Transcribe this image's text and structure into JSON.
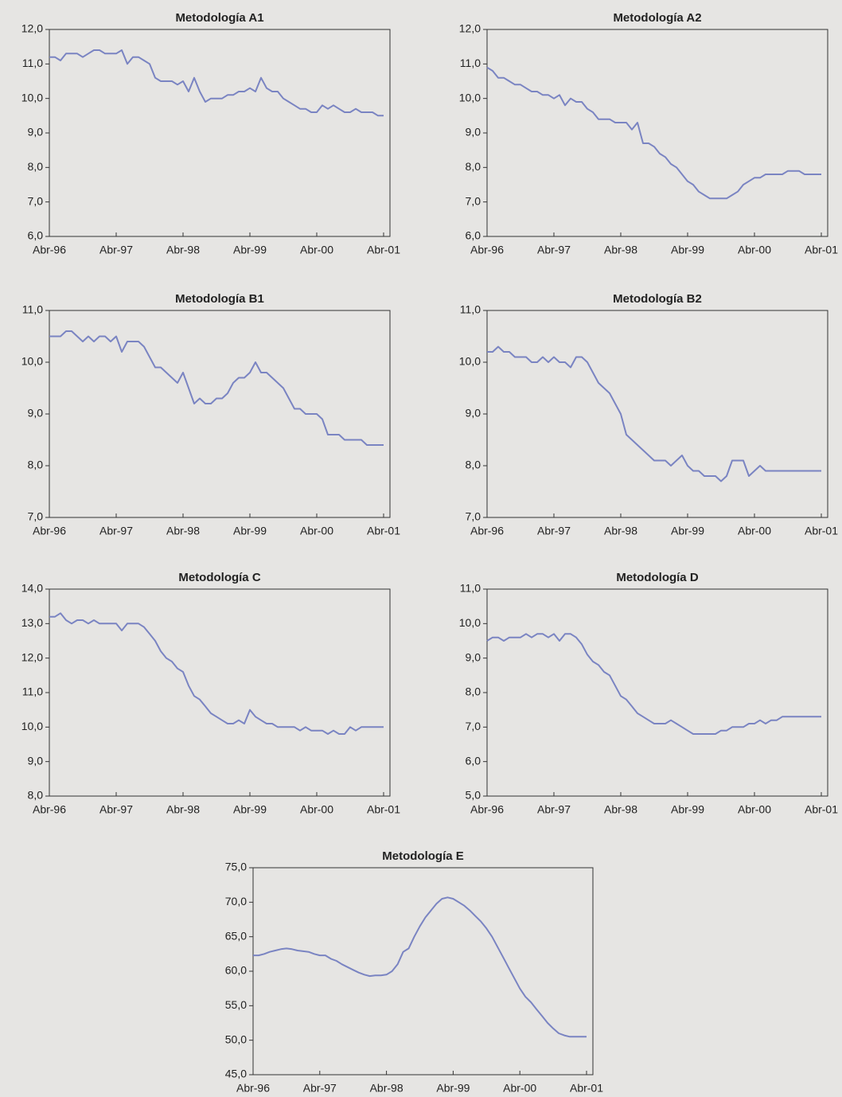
{
  "chart_data": [
    {
      "type": "line",
      "title": "Metodología A1",
      "color": "#7a84c2",
      "categories": [
        "Abr-96",
        null,
        null,
        null,
        null,
        null,
        null,
        null,
        null,
        null,
        null,
        null,
        "Abr-97",
        null,
        null,
        null,
        null,
        null,
        null,
        null,
        null,
        null,
        null,
        null,
        "Abr-98",
        null,
        null,
        null,
        null,
        null,
        null,
        null,
        null,
        null,
        null,
        null,
        "Abr-99",
        null,
        null,
        null,
        null,
        null,
        null,
        null,
        null,
        null,
        null,
        null,
        "Abr-00",
        null,
        null,
        null,
        null,
        null,
        null,
        null,
        null,
        null,
        null,
        null,
        "Abr-01"
      ],
      "values": [
        11.2,
        11.2,
        11.1,
        11.3,
        11.3,
        11.3,
        11.2,
        11.3,
        11.4,
        11.4,
        11.3,
        11.3,
        11.3,
        11.4,
        11.0,
        11.2,
        11.2,
        11.1,
        11.0,
        10.6,
        10.5,
        10.5,
        10.5,
        10.4,
        10.5,
        10.2,
        10.6,
        10.2,
        9.9,
        10.0,
        10.0,
        10.0,
        10.1,
        10.1,
        10.2,
        10.2,
        10.3,
        10.2,
        10.6,
        10.3,
        10.2,
        10.2,
        10.0,
        9.9,
        9.8,
        9.7,
        9.7,
        9.6,
        9.6,
        9.8,
        9.7,
        9.8,
        9.7,
        9.6,
        9.6,
        9.7,
        9.6,
        9.6,
        9.6,
        9.5,
        9.5
      ],
      "ylim": [
        6,
        12
      ],
      "yticks": [
        {
          "value": 6,
          "label": "6,0"
        },
        {
          "value": 7,
          "label": "7,0"
        },
        {
          "value": 8,
          "label": "8,0"
        },
        {
          "value": 9,
          "label": "9,0"
        },
        {
          "value": 10,
          "label": "10,0"
        },
        {
          "value": 11,
          "label": "11,0"
        },
        {
          "value": 12,
          "label": "12,0"
        }
      ]
    },
    {
      "type": "line",
      "title": "Metodología A2",
      "color": "#7a84c2",
      "categories": [
        "Abr-96",
        null,
        null,
        null,
        null,
        null,
        null,
        null,
        null,
        null,
        null,
        null,
        "Abr-97",
        null,
        null,
        null,
        null,
        null,
        null,
        null,
        null,
        null,
        null,
        null,
        "Abr-98",
        null,
        null,
        null,
        null,
        null,
        null,
        null,
        null,
        null,
        null,
        null,
        "Abr-99",
        null,
        null,
        null,
        null,
        null,
        null,
        null,
        null,
        null,
        null,
        null,
        "Abr-00",
        null,
        null,
        null,
        null,
        null,
        null,
        null,
        null,
        null,
        null,
        null,
        "Abr-01"
      ],
      "values": [
        10.9,
        10.8,
        10.6,
        10.6,
        10.5,
        10.4,
        10.4,
        10.3,
        10.2,
        10.2,
        10.1,
        10.1,
        10.0,
        10.1,
        9.8,
        10.0,
        9.9,
        9.9,
        9.7,
        9.6,
        9.4,
        9.4,
        9.4,
        9.3,
        9.3,
        9.3,
        9.1,
        9.3,
        8.7,
        8.7,
        8.6,
        8.4,
        8.3,
        8.1,
        8.0,
        7.8,
        7.6,
        7.5,
        7.3,
        7.2,
        7.1,
        7.1,
        7.1,
        7.1,
        7.2,
        7.3,
        7.5,
        7.6,
        7.7,
        7.7,
        7.8,
        7.8,
        7.8,
        7.8,
        7.9,
        7.9,
        7.9,
        7.8,
        7.8,
        7.8,
        7.8
      ],
      "ylim": [
        6,
        12
      ],
      "yticks": [
        {
          "value": 6,
          "label": "6,0"
        },
        {
          "value": 7,
          "label": "7,0"
        },
        {
          "value": 8,
          "label": "8,0"
        },
        {
          "value": 9,
          "label": "9,0"
        },
        {
          "value": 10,
          "label": "10,0"
        },
        {
          "value": 11,
          "label": "11,0"
        },
        {
          "value": 12,
          "label": "12,0"
        }
      ]
    },
    {
      "type": "line",
      "title": "Metodología B1",
      "color": "#7a84c2",
      "categories": [
        "Abr-96",
        null,
        null,
        null,
        null,
        null,
        null,
        null,
        null,
        null,
        null,
        null,
        "Abr-97",
        null,
        null,
        null,
        null,
        null,
        null,
        null,
        null,
        null,
        null,
        null,
        "Abr-98",
        null,
        null,
        null,
        null,
        null,
        null,
        null,
        null,
        null,
        null,
        null,
        "Abr-99",
        null,
        null,
        null,
        null,
        null,
        null,
        null,
        null,
        null,
        null,
        null,
        "Abr-00",
        null,
        null,
        null,
        null,
        null,
        null,
        null,
        null,
        null,
        null,
        null,
        "Abr-01"
      ],
      "values": [
        10.5,
        10.5,
        10.5,
        10.6,
        10.6,
        10.5,
        10.4,
        10.5,
        10.4,
        10.5,
        10.5,
        10.4,
        10.5,
        10.2,
        10.4,
        10.4,
        10.4,
        10.3,
        10.1,
        9.9,
        9.9,
        9.8,
        9.7,
        9.6,
        9.8,
        9.5,
        9.2,
        9.3,
        9.2,
        9.2,
        9.3,
        9.3,
        9.4,
        9.6,
        9.7,
        9.7,
        9.8,
        10.0,
        9.8,
        9.8,
        9.7,
        9.6,
        9.5,
        9.3,
        9.1,
        9.1,
        9.0,
        9.0,
        9.0,
        8.9,
        8.6,
        8.6,
        8.6,
        8.5,
        8.5,
        8.5,
        8.5,
        8.4,
        8.4,
        8.4,
        8.4
      ],
      "ylim": [
        7,
        11
      ],
      "yticks": [
        {
          "value": 7,
          "label": "7,0"
        },
        {
          "value": 8,
          "label": "8,0"
        },
        {
          "value": 9,
          "label": "9,0"
        },
        {
          "value": 10,
          "label": "10,0"
        },
        {
          "value": 11,
          "label": "11,0"
        }
      ]
    },
    {
      "type": "line",
      "title": "Metodología B2",
      "color": "#7a84c2",
      "categories": [
        "Abr-96",
        null,
        null,
        null,
        null,
        null,
        null,
        null,
        null,
        null,
        null,
        null,
        "Abr-97",
        null,
        null,
        null,
        null,
        null,
        null,
        null,
        null,
        null,
        null,
        null,
        "Abr-98",
        null,
        null,
        null,
        null,
        null,
        null,
        null,
        null,
        null,
        null,
        null,
        "Abr-99",
        null,
        null,
        null,
        null,
        null,
        null,
        null,
        null,
        null,
        null,
        null,
        "Abr-00",
        null,
        null,
        null,
        null,
        null,
        null,
        null,
        null,
        null,
        null,
        null,
        "Abr-01"
      ],
      "values": [
        10.2,
        10.2,
        10.3,
        10.2,
        10.2,
        10.1,
        10.1,
        10.1,
        10.0,
        10.0,
        10.1,
        10.0,
        10.1,
        10.0,
        10.0,
        9.9,
        10.1,
        10.1,
        10.0,
        9.8,
        9.6,
        9.5,
        9.4,
        9.2,
        9.0,
        8.6,
        8.5,
        8.4,
        8.3,
        8.2,
        8.1,
        8.1,
        8.1,
        8.0,
        8.1,
        8.2,
        8.0,
        7.9,
        7.9,
        7.8,
        7.8,
        7.8,
        7.7,
        7.8,
        8.1,
        8.1,
        8.1,
        7.8,
        7.9,
        8.0,
        7.9,
        7.9,
        7.9,
        7.9,
        7.9,
        7.9,
        7.9,
        7.9,
        7.9,
        7.9,
        7.9
      ],
      "ylim": [
        7,
        11
      ],
      "yticks": [
        {
          "value": 7,
          "label": "7,0"
        },
        {
          "value": 8,
          "label": "8,0"
        },
        {
          "value": 9,
          "label": "9,0"
        },
        {
          "value": 10,
          "label": "10,0"
        },
        {
          "value": 11,
          "label": "11,0"
        }
      ]
    },
    {
      "type": "line",
      "title": "Metodología C",
      "color": "#7a84c2",
      "categories": [
        "Abr-96",
        null,
        null,
        null,
        null,
        null,
        null,
        null,
        null,
        null,
        null,
        null,
        "Abr-97",
        null,
        null,
        null,
        null,
        null,
        null,
        null,
        null,
        null,
        null,
        null,
        "Abr-98",
        null,
        null,
        null,
        null,
        null,
        null,
        null,
        null,
        null,
        null,
        null,
        "Abr-99",
        null,
        null,
        null,
        null,
        null,
        null,
        null,
        null,
        null,
        null,
        null,
        "Abr-00",
        null,
        null,
        null,
        null,
        null,
        null,
        null,
        null,
        null,
        null,
        null,
        "Abr-01"
      ],
      "values": [
        13.2,
        13.2,
        13.3,
        13.1,
        13.0,
        13.1,
        13.1,
        13.0,
        13.1,
        13.0,
        13.0,
        13.0,
        13.0,
        12.8,
        13.0,
        13.0,
        13.0,
        12.9,
        12.7,
        12.5,
        12.2,
        12.0,
        11.9,
        11.7,
        11.6,
        11.2,
        10.9,
        10.8,
        10.6,
        10.4,
        10.3,
        10.2,
        10.1,
        10.1,
        10.2,
        10.1,
        10.5,
        10.3,
        10.2,
        10.1,
        10.1,
        10.0,
        10.0,
        10.0,
        10.0,
        9.9,
        10.0,
        9.9,
        9.9,
        9.9,
        9.8,
        9.9,
        9.8,
        9.8,
        10.0,
        9.9,
        10.0,
        10.0,
        10.0,
        10.0,
        10.0
      ],
      "ylim": [
        8,
        14
      ],
      "yticks": [
        {
          "value": 8,
          "label": "8,0"
        },
        {
          "value": 9,
          "label": "9,0"
        },
        {
          "value": 10,
          "label": "10,0"
        },
        {
          "value": 11,
          "label": "11,0"
        },
        {
          "value": 12,
          "label": "12,0"
        },
        {
          "value": 13,
          "label": "13,0"
        },
        {
          "value": 14,
          "label": "14,0"
        }
      ]
    },
    {
      "type": "line",
      "title": "Metodología D",
      "color": "#7a84c2",
      "categories": [
        "Abr-96",
        null,
        null,
        null,
        null,
        null,
        null,
        null,
        null,
        null,
        null,
        null,
        "Abr-97",
        null,
        null,
        null,
        null,
        null,
        null,
        null,
        null,
        null,
        null,
        null,
        "Abr-98",
        null,
        null,
        null,
        null,
        null,
        null,
        null,
        null,
        null,
        null,
        null,
        "Abr-99",
        null,
        null,
        null,
        null,
        null,
        null,
        null,
        null,
        null,
        null,
        null,
        "Abr-00",
        null,
        null,
        null,
        null,
        null,
        null,
        null,
        null,
        null,
        null,
        null,
        "Abr-01"
      ],
      "values": [
        9.5,
        9.6,
        9.6,
        9.5,
        9.6,
        9.6,
        9.6,
        9.7,
        9.6,
        9.7,
        9.7,
        9.6,
        9.7,
        9.5,
        9.7,
        9.7,
        9.6,
        9.4,
        9.1,
        8.9,
        8.8,
        8.6,
        8.5,
        8.2,
        7.9,
        7.8,
        7.6,
        7.4,
        7.3,
        7.2,
        7.1,
        7.1,
        7.1,
        7.2,
        7.1,
        7.0,
        6.9,
        6.8,
        6.8,
        6.8,
        6.8,
        6.8,
        6.9,
        6.9,
        7.0,
        7.0,
        7.0,
        7.1,
        7.1,
        7.2,
        7.1,
        7.2,
        7.2,
        7.3,
        7.3,
        7.3,
        7.3,
        7.3,
        7.3,
        7.3,
        7.3
      ],
      "ylim": [
        5,
        11
      ],
      "yticks": [
        {
          "value": 5,
          "label": "5,0"
        },
        {
          "value": 6,
          "label": "6,0"
        },
        {
          "value": 7,
          "label": "7,0"
        },
        {
          "value": 8,
          "label": "8,0"
        },
        {
          "value": 9,
          "label": "9,0"
        },
        {
          "value": 10,
          "label": "10,0"
        },
        {
          "value": 11,
          "label": "11,0"
        }
      ]
    },
    {
      "type": "line",
      "title": "Metodología E",
      "color": "#7a84c2",
      "categories": [
        "Abr-96",
        null,
        null,
        null,
        null,
        null,
        null,
        null,
        null,
        null,
        null,
        null,
        "Abr-97",
        null,
        null,
        null,
        null,
        null,
        null,
        null,
        null,
        null,
        null,
        null,
        "Abr-98",
        null,
        null,
        null,
        null,
        null,
        null,
        null,
        null,
        null,
        null,
        null,
        "Abr-99",
        null,
        null,
        null,
        null,
        null,
        null,
        null,
        null,
        null,
        null,
        null,
        "Abr-00",
        null,
        null,
        null,
        null,
        null,
        null,
        null,
        null,
        null,
        null,
        null,
        "Abr-01"
      ],
      "values": [
        62.3,
        62.3,
        62.5,
        62.8,
        63.0,
        63.2,
        63.3,
        63.2,
        63.0,
        62.9,
        62.8,
        62.5,
        62.3,
        62.3,
        61.8,
        61.5,
        61.0,
        60.6,
        60.2,
        59.8,
        59.5,
        59.3,
        59.4,
        59.4,
        59.5,
        60.0,
        61.0,
        62.8,
        63.3,
        65.0,
        66.5,
        67.8,
        68.8,
        69.8,
        70.5,
        70.7,
        70.5,
        70.0,
        69.5,
        68.8,
        68.0,
        67.2,
        66.2,
        65.0,
        63.5,
        62.0,
        60.5,
        59.0,
        57.5,
        56.3,
        55.5,
        54.5,
        53.5,
        52.5,
        51.7,
        51.0,
        50.7,
        50.5,
        50.5,
        50.5,
        50.5
      ],
      "ylim": [
        45,
        75
      ],
      "yticks": [
        {
          "value": 45,
          "label": "45,0"
        },
        {
          "value": 50,
          "label": "50,0"
        },
        {
          "value": 55,
          "label": "55,0"
        },
        {
          "value": 60,
          "label": "60,0"
        },
        {
          "value": 65,
          "label": "65,0"
        },
        {
          "value": 70,
          "label": "70,0"
        },
        {
          "value": 75,
          "label": "75,0"
        }
      ]
    }
  ]
}
